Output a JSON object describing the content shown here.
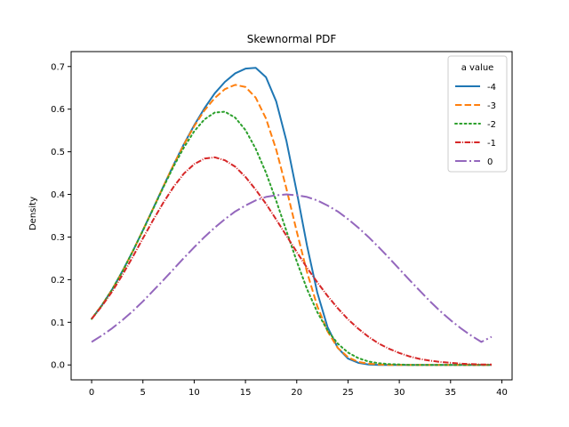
{
  "chart_data": {
    "type": "line",
    "title": "Skewnormal PDF",
    "xlabel": "",
    "ylabel": "Density",
    "xlim": [
      -2,
      41
    ],
    "ylim": [
      -0.035,
      0.735
    ],
    "xticks": [
      0,
      5,
      10,
      15,
      20,
      25,
      30,
      35,
      40
    ],
    "yticks": [
      0.0,
      0.1,
      0.2,
      0.3,
      0.4,
      0.5,
      0.6,
      0.7
    ],
    "grid": false,
    "legend": {
      "title": "a value",
      "placement": "top-right"
    },
    "x": [
      0,
      1,
      2,
      3,
      4,
      5,
      6,
      7,
      8,
      9,
      10,
      11,
      12,
      13,
      14,
      15,
      16,
      17,
      18,
      19,
      20,
      21,
      22,
      23,
      24,
      25,
      26,
      27,
      28,
      29,
      30,
      31,
      32,
      33,
      34,
      35,
      36,
      37,
      38,
      39
    ],
    "series": [
      {
        "name": "-4",
        "color": "#1f77b4",
        "dash": "solid",
        "values": [
          0.108,
          0.14,
          0.177,
          0.22,
          0.266,
          0.316,
          0.367,
          0.419,
          0.47,
          0.518,
          0.562,
          0.602,
          0.637,
          0.664,
          0.684,
          0.695,
          0.697,
          0.675,
          0.618,
          0.525,
          0.406,
          0.28,
          0.17,
          0.089,
          0.04,
          0.015,
          0.005,
          0.001,
          0.0,
          0.0,
          0.0,
          0.0,
          0.0,
          0.0,
          0.0,
          0.0,
          0.0,
          0.0,
          0.0,
          0.0
        ]
      },
      {
        "name": "-3",
        "color": "#ff7f0e",
        "dash": "dashed",
        "values": [
          0.108,
          0.14,
          0.177,
          0.219,
          0.266,
          0.316,
          0.367,
          0.419,
          0.47,
          0.517,
          0.56,
          0.597,
          0.626,
          0.647,
          0.657,
          0.652,
          0.627,
          0.578,
          0.505,
          0.413,
          0.313,
          0.218,
          0.138,
          0.079,
          0.04,
          0.018,
          0.007,
          0.003,
          0.001,
          0.0,
          0.0,
          0.0,
          0.0,
          0.0,
          0.0,
          0.0,
          0.0,
          0.0,
          0.0,
          0.0
        ]
      },
      {
        "name": "-2",
        "color": "#2ca02c",
        "dash": "dotted",
        "values": [
          0.108,
          0.14,
          0.177,
          0.219,
          0.266,
          0.315,
          0.366,
          0.417,
          0.466,
          0.51,
          0.548,
          0.576,
          0.592,
          0.594,
          0.58,
          0.551,
          0.507,
          0.451,
          0.385,
          0.314,
          0.243,
          0.178,
          0.124,
          0.081,
          0.05,
          0.029,
          0.016,
          0.008,
          0.004,
          0.002,
          0.001,
          0.0,
          0.0,
          0.0,
          0.0,
          0.0,
          0.0,
          0.0,
          0.0,
          0.0
        ]
      },
      {
        "name": "-1",
        "color": "#d62728",
        "dash": "dashdot-dense",
        "values": [
          0.108,
          0.138,
          0.172,
          0.211,
          0.253,
          0.297,
          0.34,
          0.381,
          0.418,
          0.449,
          0.471,
          0.484,
          0.487,
          0.48,
          0.465,
          0.441,
          0.411,
          0.378,
          0.341,
          0.303,
          0.265,
          0.228,
          0.194,
          0.162,
          0.133,
          0.107,
          0.085,
          0.066,
          0.05,
          0.038,
          0.028,
          0.02,
          0.014,
          0.01,
          0.007,
          0.005,
          0.003,
          0.002,
          0.001,
          0.001
        ]
      },
      {
        "name": "0",
        "color": "#9467bd",
        "dash": "dashdot",
        "values": [
          0.054,
          0.069,
          0.086,
          0.105,
          0.126,
          0.149,
          0.174,
          0.199,
          0.225,
          0.251,
          0.276,
          0.3,
          0.322,
          0.342,
          0.36,
          0.374,
          0.386,
          0.394,
          0.398,
          0.4,
          0.398,
          0.394,
          0.386,
          0.374,
          0.36,
          0.342,
          0.322,
          0.3,
          0.276,
          0.251,
          0.225,
          0.199,
          0.174,
          0.149,
          0.126,
          0.105,
          0.086,
          0.069,
          0.054,
          0.066
        ]
      }
    ]
  }
}
